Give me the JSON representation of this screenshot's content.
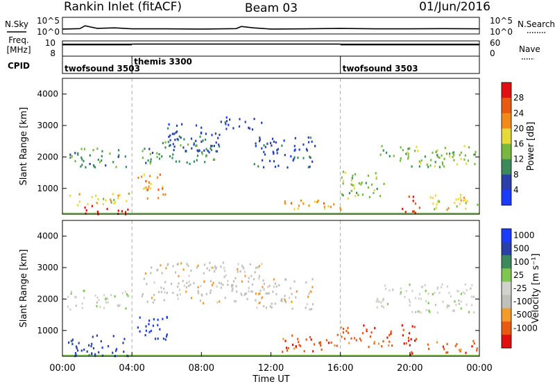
{
  "header": {
    "station": "Rankin Inlet (fitACF)",
    "beam": "Beam 03",
    "date": "01/Jun/2016"
  },
  "side_labels": {
    "nsky": "N.Sky",
    "freq": "Freq.",
    "freq_unit": "[MHz]",
    "cpid": "CPID",
    "nsearch": "N.Search",
    "nave": "Nave"
  },
  "cpid_segments": [
    {
      "start_h": 0.0,
      "end_h": 4.0,
      "label": "twofsound 3503"
    },
    {
      "start_h": 4.0,
      "end_h": 16.0,
      "label": "themis 3300"
    },
    {
      "start_h": 16.0,
      "end_h": 24.0,
      "label": "twofsound 3503"
    }
  ],
  "colors": {
    "power_scale": [
      "#1a3cff",
      "#2a3fa8",
      "#3b8a5c",
      "#79b83f",
      "#e7d93a",
      "#f08a1a",
      "#e85a12",
      "#e01010"
    ],
    "velocity_scale": [
      "#e01010",
      "#e85a12",
      "#f39a2a",
      "#c0c0bb",
      "#d2d2cc",
      "#7fc650",
      "#3b8a5c",
      "#2a3fa8",
      "#1a3cff"
    ],
    "ground_scatter": "#8fd060"
  },
  "chart_data": [
    {
      "type": "line",
      "panel": "noise",
      "ylabel_left": "N.Sky",
      "ylabel_right": "N.Search",
      "left_ticks": [
        "10^5",
        "10^0"
      ],
      "right_ticks": [
        "10^5",
        "10^0"
      ],
      "x_hours": [
        0,
        1,
        1.3,
        2,
        3,
        4,
        6,
        8,
        10,
        10.3,
        11,
        12,
        14,
        16,
        18,
        20,
        22,
        24
      ],
      "y_log10": [
        0.9,
        1.1,
        2.3,
        1.2,
        1.4,
        1.0,
        1.0,
        0.9,
        1.1,
        2.0,
        1.4,
        0.9,
        1.0,
        1.2,
        1.0,
        1.0,
        1.1,
        1.0
      ]
    },
    {
      "type": "line",
      "panel": "frequency",
      "ylabel_left": "Freq. [MHz]",
      "ylabel_right": "Nave",
      "left_ticks": [
        "10",
        "8"
      ],
      "right_ticks": [
        "60",
        "0"
      ],
      "freq_series": [
        {
          "x_hours": [
            0,
            4
          ],
          "freq_low": 10.1,
          "freq_high": 10.5
        },
        {
          "x_hours": [
            4,
            16
          ],
          "freq_low": 10.4,
          "freq_high": 10.4
        },
        {
          "x_hours": [
            16,
            24
          ],
          "freq_low": 10.1,
          "freq_high": 10.5
        }
      ]
    },
    {
      "type": "heatmap",
      "panel": "power",
      "ylabel": "Slant Range [km]",
      "yticks": [
        1000,
        2000,
        3000,
        4000
      ],
      "ylim": [
        180,
        4500
      ],
      "xlim_hours": [
        0,
        24
      ],
      "colorbar_label": "Power [dB]",
      "colorbar_ticks": [
        4,
        8,
        12,
        16,
        20,
        24,
        28
      ],
      "regions": [
        {
          "t0": 1.0,
          "t1": 3.8,
          "r0": 200,
          "r1": 500,
          "level": 7
        },
        {
          "t0": 0.2,
          "t1": 3.8,
          "r0": 500,
          "r1": 900,
          "level": 4
        },
        {
          "t0": 0.2,
          "t1": 3.8,
          "r0": 1700,
          "r1": 2300,
          "level": 2
        },
        {
          "t0": 4.2,
          "t1": 6.0,
          "r0": 700,
          "r1": 1500,
          "level": 5
        },
        {
          "t0": 4.5,
          "t1": 9.0,
          "r0": 1800,
          "r1": 2600,
          "level": 2
        },
        {
          "t0": 6.0,
          "t1": 9.0,
          "r0": 2200,
          "r1": 3100,
          "level": 1
        },
        {
          "t0": 9.0,
          "t1": 11.5,
          "r0": 2900,
          "r1": 3300,
          "level": 1
        },
        {
          "t0": 11.0,
          "t1": 14.5,
          "r0": 1700,
          "r1": 2700,
          "level": 1
        },
        {
          "t0": 12.5,
          "t1": 16.0,
          "r0": 350,
          "r1": 700,
          "level": 5
        },
        {
          "t0": 16.0,
          "t1": 18.5,
          "r0": 700,
          "r1": 1600,
          "level": 3
        },
        {
          "t0": 19.5,
          "t1": 20.6,
          "r0": 250,
          "r1": 800,
          "level": 7
        },
        {
          "t0": 18.0,
          "t1": 23.9,
          "r0": 1700,
          "r1": 2400,
          "level": 3
        },
        {
          "t0": 21.0,
          "t1": 23.9,
          "r0": 350,
          "r1": 900,
          "level": 4
        }
      ]
    },
    {
      "type": "heatmap",
      "panel": "velocity",
      "ylabel": "Slant Range [km]",
      "yticks": [
        1000,
        2000,
        3000,
        4000
      ],
      "ylim": [
        180,
        4500
      ],
      "xlim_hours": [
        0,
        24
      ],
      "xticks": [
        "00:00",
        "04:00",
        "08:00",
        "12:00",
        "16:00",
        "20:00",
        "00:00"
      ],
      "xlabel": "Time UT",
      "colorbar_label": "Velocity [m s⁻¹]",
      "colorbar_ticks": [
        "1000",
        "500",
        "100",
        "25",
        "-25",
        "-100",
        "-500",
        "-1000"
      ],
      "regions": [
        {
          "t0": 0.2,
          "t1": 3.8,
          "r0": 200,
          "r1": 900,
          "level": 7
        },
        {
          "t0": 0.2,
          "t1": 3.8,
          "r0": 1700,
          "r1": 2300,
          "level": 4
        },
        {
          "t0": 4.2,
          "t1": 6.0,
          "r0": 700,
          "r1": 1500,
          "level": 8
        },
        {
          "t0": 4.5,
          "t1": 11.5,
          "r0": 1900,
          "r1": 3200,
          "level": 3
        },
        {
          "t0": 11.0,
          "t1": 14.5,
          "r0": 1700,
          "r1": 2700,
          "level": 3
        },
        {
          "t0": 12.5,
          "t1": 16.0,
          "r0": 350,
          "r1": 900,
          "level": 1
        },
        {
          "t0": 16.0,
          "t1": 19.0,
          "r0": 500,
          "r1": 1200,
          "level": 1
        },
        {
          "t0": 19.5,
          "t1": 20.6,
          "r0": 250,
          "r1": 1200,
          "level": 0
        },
        {
          "t0": 18.0,
          "t1": 23.9,
          "r0": 1600,
          "r1": 2500,
          "level": 4
        },
        {
          "t0": 21.0,
          "t1": 23.9,
          "r0": 300,
          "r1": 700,
          "level": 1
        }
      ]
    }
  ]
}
